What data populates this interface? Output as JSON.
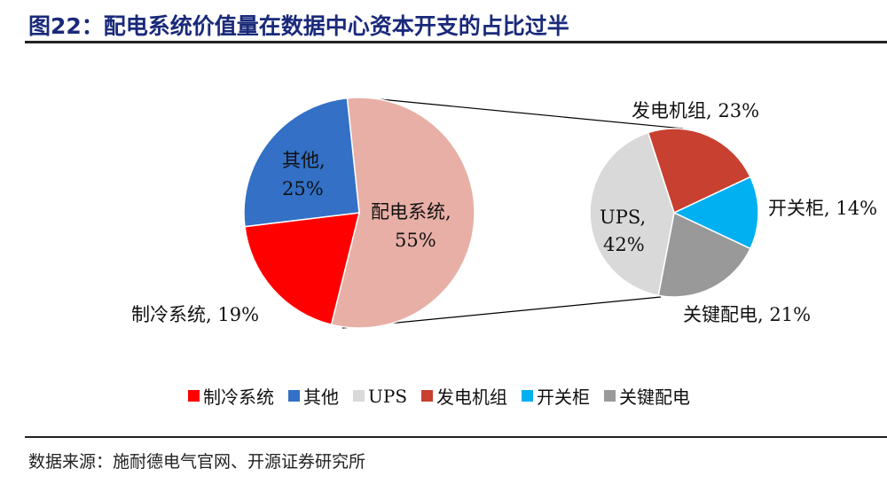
{
  "title": "图22：配电系统价值量在数据中心资本开支的占比过半",
  "source": "数据来源：施耐德电气官网、开源证券研究所",
  "chart_data": [
    {
      "type": "pie",
      "name": "main",
      "slices": [
        {
          "label": "配电系统",
          "value": 55,
          "color": "#E8AFA6",
          "text": "配电系统,",
          "pct": "55%"
        },
        {
          "label": "制冷系统",
          "value": 19,
          "color": "#FF0000",
          "text": "制冷系统, 19%",
          "pct": ""
        },
        {
          "label": "其他",
          "value": 25,
          "color": "#3370C6",
          "text": "其他,",
          "pct": "25%"
        }
      ]
    },
    {
      "type": "pie",
      "name": "breakdown-of-配电系统",
      "slices": [
        {
          "label": "发电机组",
          "value": 23,
          "color": "#C8402F",
          "text": "发电机组, 23%",
          "pct": ""
        },
        {
          "label": "开关柜",
          "value": 14,
          "color": "#00B0F0",
          "text": "开关柜, 14%",
          "pct": ""
        },
        {
          "label": "关键配电",
          "value": 21,
          "color": "#999999",
          "text": "关键配电, 21%",
          "pct": ""
        },
        {
          "label": "UPS",
          "value": 42,
          "color": "#D9D9D9",
          "text": "UPS,",
          "pct": "42%"
        }
      ]
    }
  ],
  "legend": [
    {
      "label": "制冷系统",
      "color": "#FF0000"
    },
    {
      "label": "其他",
      "color": "#3370C6"
    },
    {
      "label": "UPS",
      "color": "#D9D9D9"
    },
    {
      "label": "发电机组",
      "color": "#C8402F"
    },
    {
      "label": "开关柜",
      "color": "#00B0F0"
    },
    {
      "label": "关键配电",
      "color": "#999999"
    }
  ]
}
